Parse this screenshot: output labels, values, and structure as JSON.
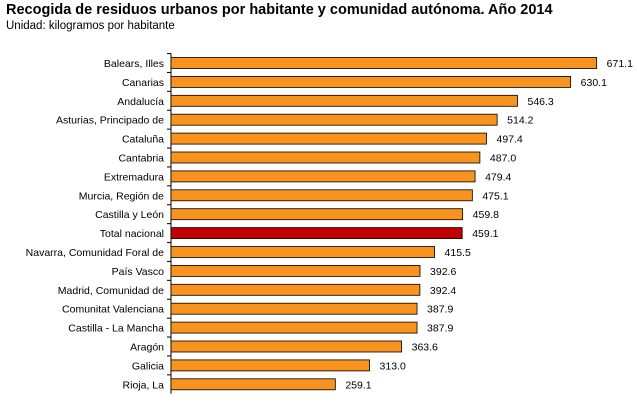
{
  "title": "Recogida de residuos urbanos por habitante y comunidad autónoma. Año 2014",
  "subtitle": "Unidad: kilogramos por habitante",
  "colors": {
    "bar": "#F7931E",
    "highlight": "#C00000",
    "stroke": "#000000",
    "axis": "#000000"
  },
  "chart_data": {
    "type": "bar",
    "orientation": "horizontal",
    "title": "Recogida de residuos urbanos por habitante y comunidad autónoma. Año 2014",
    "subtitle": "Unidad: kilogramos por habitante",
    "xlabel": "",
    "ylabel": "",
    "xlim": [
      0,
      700
    ],
    "grid": false,
    "highlight_category": "Total nacional",
    "categories": [
      "Balears, Illes",
      "Canarias",
      "Andalucía",
      "Asturias, Principado de",
      "Cataluña",
      "Cantabria",
      "Extremadura",
      "Murcia, Región de",
      "Castilla y León",
      "Total nacional",
      "Navarra, Comunidad Foral de",
      "País Vasco",
      "Madrid, Comunidad de",
      "Comunitat Valenciana",
      "Castilla - La Mancha",
      "Aragón",
      "Galicia",
      "Rioja, La"
    ],
    "values": [
      671.1,
      630.1,
      546.3,
      514.2,
      497.4,
      487.0,
      479.4,
      475.1,
      459.8,
      459.1,
      415.5,
      392.6,
      392.4,
      387.9,
      387.9,
      363.6,
      313.0,
      259.1
    ],
    "value_labels": [
      "671.1",
      "630.1",
      "546.3",
      "514.2",
      "497.4",
      "487.0",
      "479.4",
      "475.1",
      "459.8",
      "459.1",
      "415.5",
      "392.6",
      "392.4",
      "387.9",
      "387.9",
      "363.6",
      "313.0",
      "259.1"
    ]
  }
}
